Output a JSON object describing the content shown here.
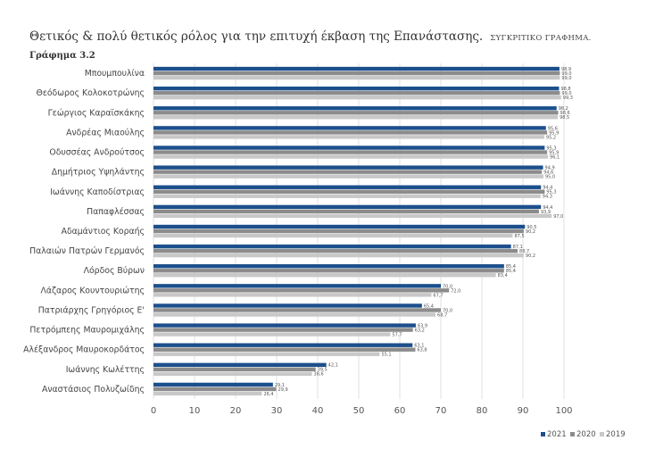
{
  "chart_data": {
    "type": "bar",
    "orientation": "horizontal",
    "title": "Θετικός & πολύ θετικός ρόλος για την επιτυχή έκβαση της Επανάστασης.",
    "subtitle": "ΣΥΓΚΡΙΤΙΚΟ ΓΡΑΦΗΜΑ.",
    "figure_label": "Γράφημα 3.2",
    "categories": [
      "Μπουμπουλίνα",
      "Θεόδωρος Κολοκοτρώνης",
      "Γεώργιος Καραϊσκάκης",
      "Ανδρέας Μιαούλης",
      "Οδυσσέας Ανδρούτσος",
      "Δημήτριος Υψηλάντης",
      "Ιωάννης Καποδίστριας",
      "Παπαφλέσσας",
      "Αδαμάντιος Κοραής",
      "Παλαιών Πατρών Γερμανός",
      "Λόρδος Βύρων",
      "Λάζαρος Κουντουριώτης",
      "Πατριάρχης Γρηγόριος Ε'",
      "Πετρόμπεης Μαυρομιχάλης",
      "Αλέξανδρος Μαυροκορδάτος",
      "Ιωάννης Κωλέττης",
      "Αναστάσιος Πολυζωίδης"
    ],
    "series": [
      {
        "name": "2021",
        "color": "#1c4f8c",
        "values": [
          98.9,
          98.8,
          98.2,
          95.6,
          95.3,
          94.9,
          94.4,
          94.4,
          90.5,
          87.1,
          85.4,
          70.0,
          65.4,
          63.9,
          63.1,
          42.1,
          29.1
        ],
        "labels": [
          "98,9",
          "98,8",
          "98,2",
          "95,6",
          "95,3",
          "94,9",
          "94,4",
          "94,4",
          "90,5",
          "87,1",
          "85,4",
          "70,0",
          "65,4",
          "63,9",
          "63,1",
          "42,1",
          "29,1"
        ]
      },
      {
        "name": "2020",
        "color": "#8c8c8c",
        "values": [
          99.0,
          99.0,
          98.6,
          95.9,
          95.9,
          94.6,
          95.3,
          93.9,
          90.2,
          88.7,
          85.4,
          72.0,
          70.0,
          63.2,
          63.8,
          39.5,
          29.9
        ],
        "labels": [
          "99,0",
          "99,0",
          "98,6",
          "95,9",
          "95,9",
          "94,6",
          "95,3",
          "93,9",
          "90,2",
          "88,7",
          "85,4",
          "72,0",
          "70,0",
          "63,2",
          "63,8",
          "39,5",
          "29,9"
        ]
      },
      {
        "name": "2019",
        "color": "#c8c8c8",
        "values": [
          99.0,
          99.3,
          98.5,
          95.2,
          96.1,
          95.0,
          94.3,
          97.0,
          87.5,
          90.2,
          83.4,
          67.7,
          68.7,
          57.7,
          55.1,
          38.6,
          26.4
        ],
        "labels": [
          "99,0",
          "99,3",
          "98,5",
          "95,2",
          "96,1",
          "95,0",
          "94,3",
          "97,0",
          "87,5",
          "90,2",
          "83,4",
          "67,7",
          "68,7",
          "57,7",
          "55,1",
          "38,6",
          "26,4"
        ]
      }
    ],
    "xlim": [
      0,
      100
    ],
    "xticks": [
      "0",
      "10",
      "20",
      "30",
      "40",
      "50",
      "60",
      "70",
      "80",
      "90",
      "100"
    ],
    "xlabel": "",
    "ylabel": "",
    "grid": "vertical",
    "legend_position": "bottom-right"
  }
}
